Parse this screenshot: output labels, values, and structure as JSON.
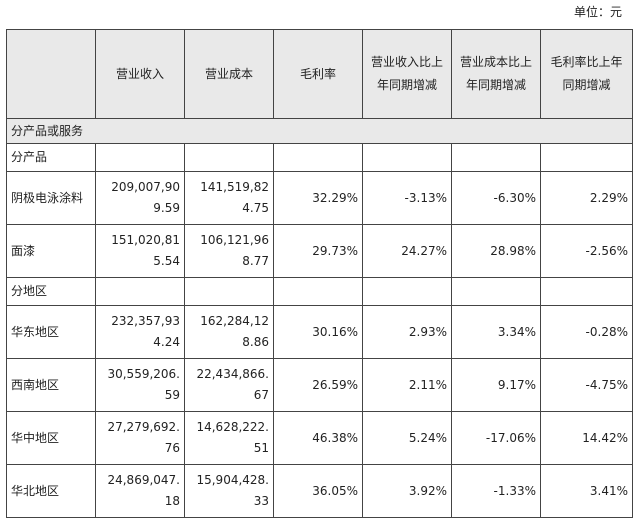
{
  "unit_label": "单位：元",
  "headers": [
    "",
    "营业收入",
    "营业成本",
    "毛利率",
    "营业收入比上年同期增减",
    "营业成本比上年同期增减",
    "毛利率比上年同期增减"
  ],
  "section_title": "分产品或服务",
  "group_product": "分产品",
  "group_region": "分地区",
  "products": [
    {
      "name": "阴极电泳涂料",
      "revenue": "209,007,909.59",
      "cost": "141,519,824.75",
      "margin": "32.29%",
      "rev_change": "-3.13%",
      "cost_change": "-6.30%",
      "margin_change": "2.29%"
    },
    {
      "name": "面漆",
      "revenue": "151,020,815.54",
      "cost": "106,121,968.77",
      "margin": "29.73%",
      "rev_change": "24.27%",
      "cost_change": "28.98%",
      "margin_change": "-2.56%"
    }
  ],
  "regions": [
    {
      "name": "华东地区",
      "revenue": "232,357,934.24",
      "cost": "162,284,128.86",
      "margin": "30.16%",
      "rev_change": "2.93%",
      "cost_change": "3.34%",
      "margin_change": "-0.28%"
    },
    {
      "name": "西南地区",
      "revenue": "30,559,206.59",
      "cost": "22,434,866.67",
      "margin": "26.59%",
      "rev_change": "2.11%",
      "cost_change": "9.17%",
      "margin_change": "-4.75%"
    },
    {
      "name": "华中地区",
      "revenue": "27,279,692.76",
      "cost": "14,628,222.51",
      "margin": "46.38%",
      "rev_change": "5.24%",
      "cost_change": "-17.06%",
      "margin_change": "14.42%"
    },
    {
      "name": "华北地区",
      "revenue": "24,869,047.18",
      "cost": "15,904,428.33",
      "margin": "36.05%",
      "rev_change": "3.92%",
      "cost_change": "-1.33%",
      "margin_change": "3.41%"
    }
  ]
}
